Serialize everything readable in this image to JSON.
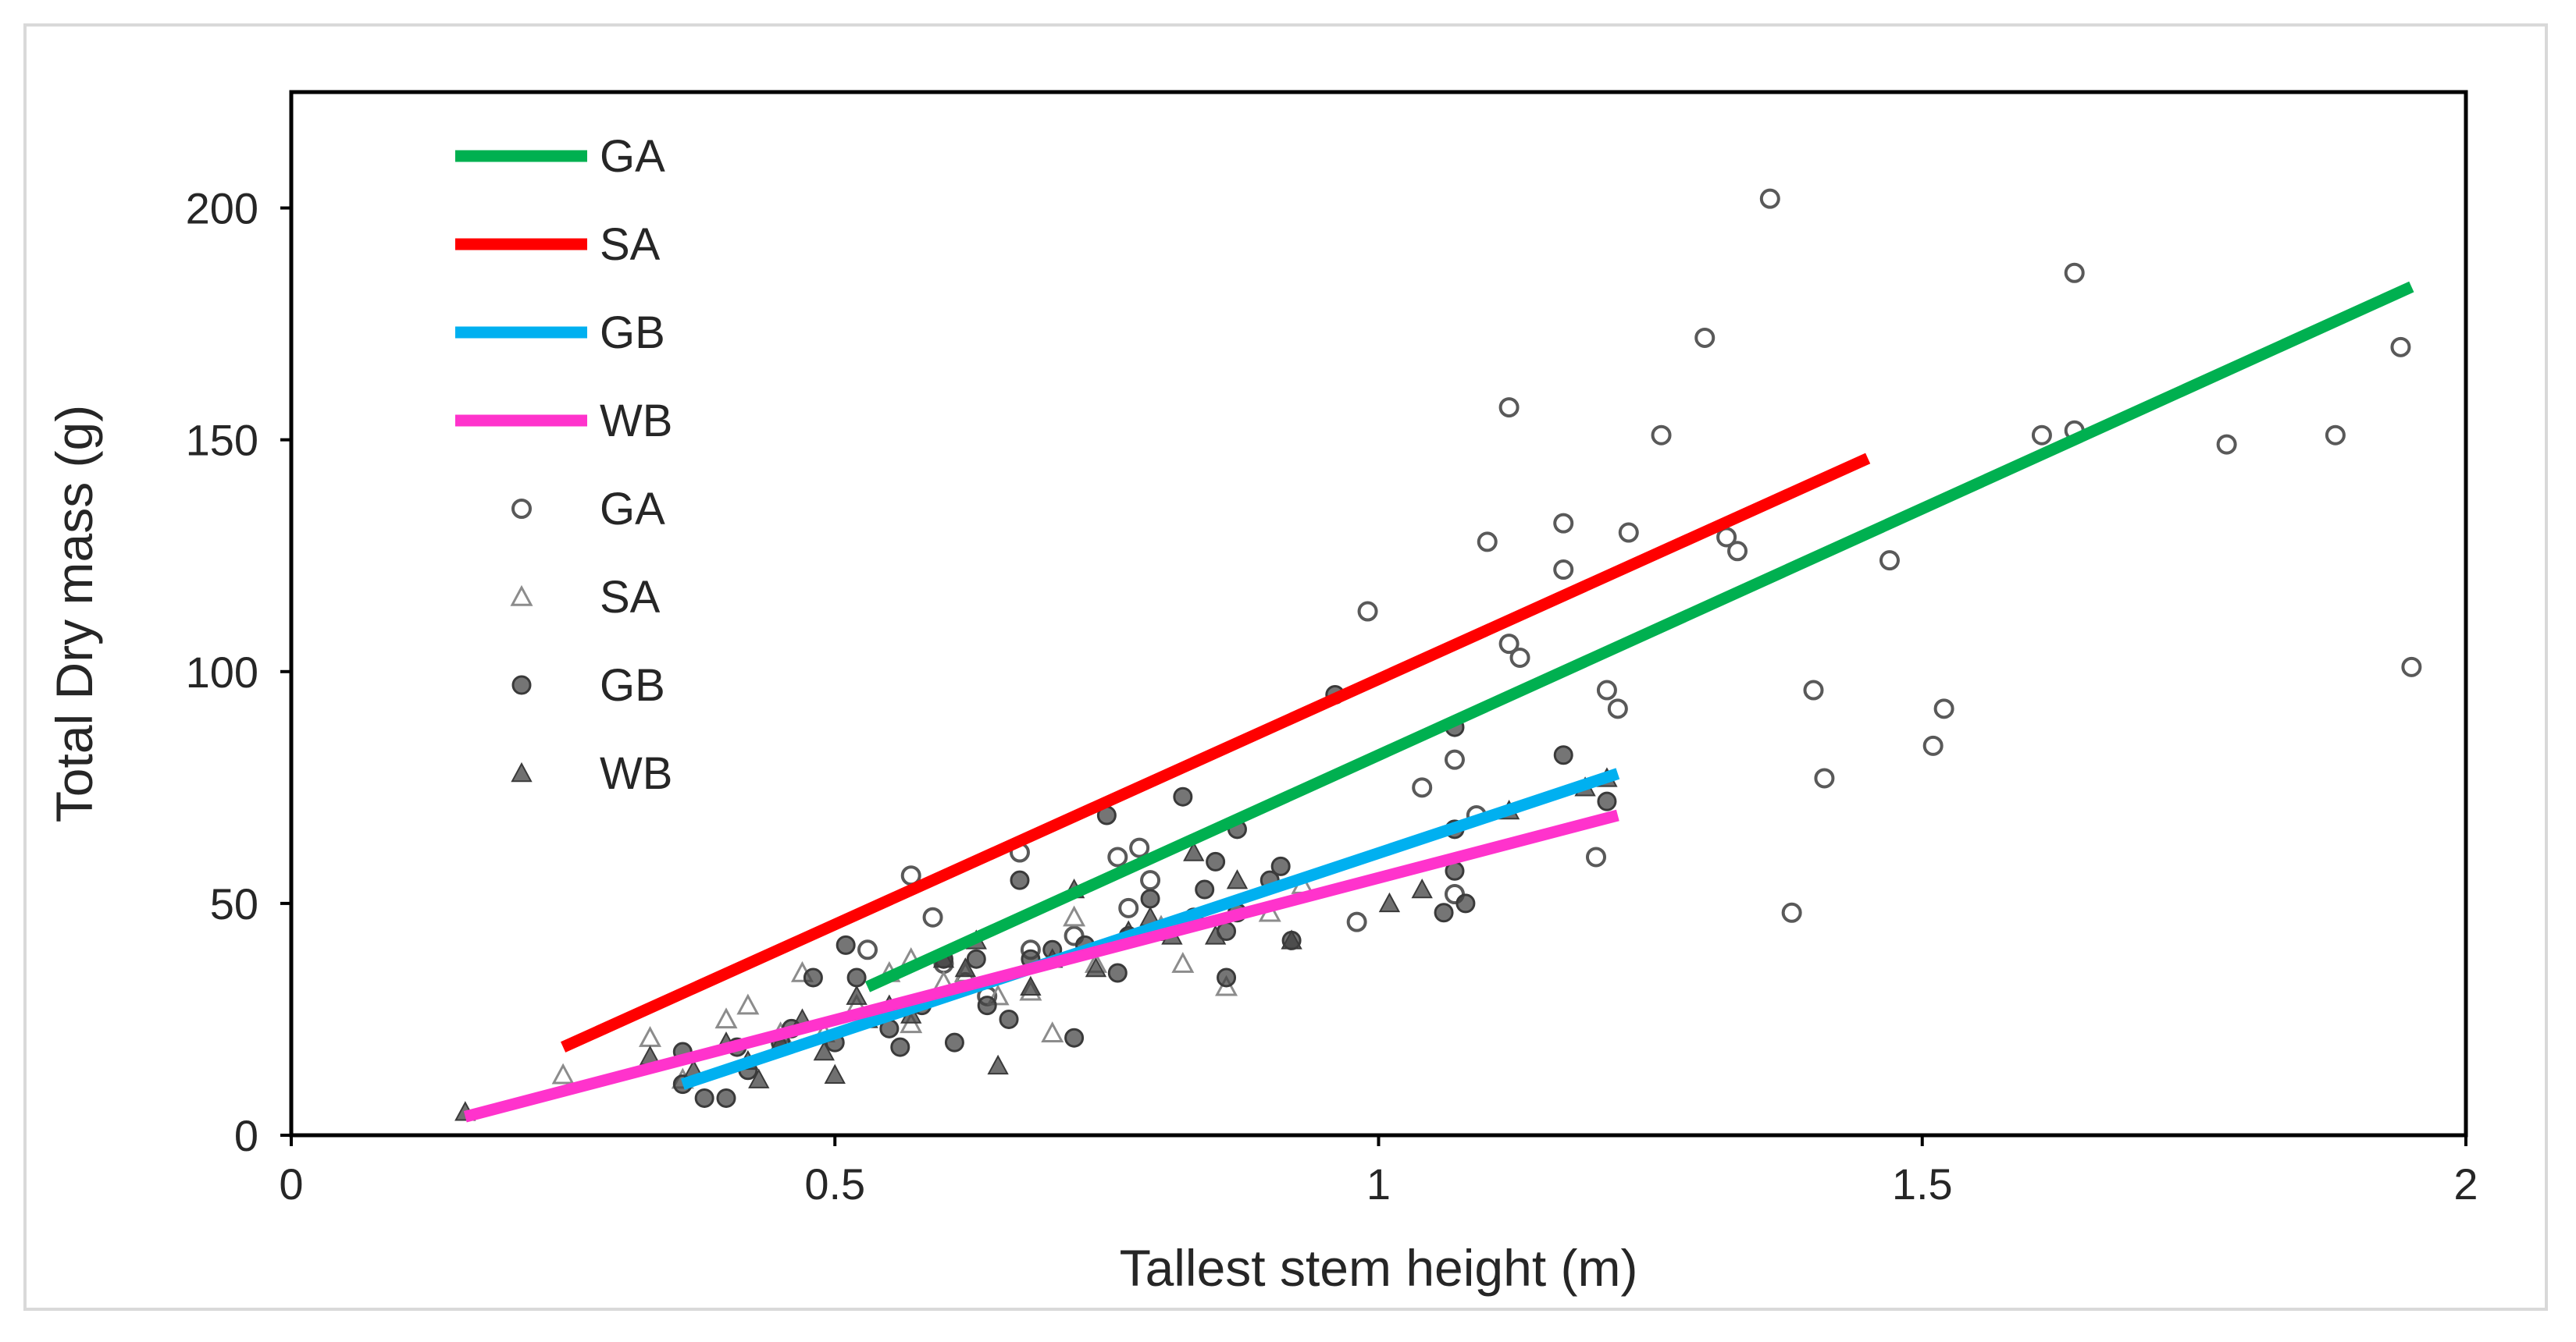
{
  "chart_data": {
    "type": "scatter",
    "xlabel": "Tallest stem height (m)",
    "ylabel": "Total Dry mass (g)",
    "xlim": [
      0,
      2
    ],
    "ylim": [
      0,
      225
    ],
    "xticks": [
      0,
      0.5,
      1,
      1.5,
      2
    ],
    "xtick_labels": [
      "0",
      "0.5",
      "1",
      "1.5",
      "2"
    ],
    "yticks": [
      0,
      50,
      100,
      150,
      200
    ],
    "ytick_labels": [
      "0",
      "50",
      "100",
      "150",
      "200"
    ],
    "legend_position": "top-left",
    "lines": [
      {
        "name": "GA",
        "color": "#00b050",
        "x": [
          0.53,
          1.95
        ],
        "y": [
          32,
          183
        ]
      },
      {
        "name": "SA",
        "color": "#ff0000",
        "x": [
          0.25,
          1.45
        ],
        "y": [
          19,
          146
        ]
      },
      {
        "name": "GB",
        "color": "#00b0f0",
        "x": [
          0.36,
          1.22
        ],
        "y": [
          11,
          78
        ]
      },
      {
        "name": "WB",
        "color": "#ff33cc",
        "x": [
          0.16,
          1.22
        ],
        "y": [
          4,
          69
        ]
      }
    ],
    "series": [
      {
        "name": "GA",
        "marker": "open-circle",
        "points": [
          [
            1.36,
            202
          ],
          [
            1.64,
            186
          ],
          [
            1.3,
            172
          ],
          [
            1.94,
            170
          ],
          [
            1.12,
            157
          ],
          [
            1.26,
            151
          ],
          [
            1.61,
            151
          ],
          [
            1.64,
            152
          ],
          [
            1.78,
            149
          ],
          [
            1.88,
            151
          ],
          [
            1.17,
            132
          ],
          [
            1.1,
            128
          ],
          [
            1.23,
            130
          ],
          [
            1.32,
            129
          ],
          [
            1.33,
            126
          ],
          [
            1.17,
            122
          ],
          [
            1.47,
            124
          ],
          [
            0.99,
            113
          ],
          [
            1.12,
            106
          ],
          [
            1.13,
            103
          ],
          [
            1.95,
            101
          ],
          [
            1.21,
            96
          ],
          [
            1.22,
            92
          ],
          [
            1.4,
            96
          ],
          [
            1.52,
            92
          ],
          [
            1.51,
            84
          ],
          [
            1.41,
            77
          ],
          [
            1.07,
            81
          ],
          [
            1.04,
            75
          ],
          [
            1.09,
            69
          ],
          [
            1.2,
            60
          ],
          [
            1.07,
            52
          ],
          [
            0.98,
            46
          ],
          [
            1.38,
            48
          ],
          [
            0.57,
            56
          ],
          [
            0.59,
            47
          ],
          [
            0.67,
            61
          ],
          [
            0.78,
            62
          ],
          [
            0.76,
            60
          ],
          [
            0.79,
            55
          ],
          [
            0.77,
            49
          ],
          [
            0.53,
            40
          ],
          [
            0.6,
            37
          ],
          [
            0.62,
            33
          ],
          [
            0.64,
            30
          ],
          [
            0.68,
            40
          ],
          [
            0.72,
            43
          ]
        ]
      },
      {
        "name": "SA",
        "marker": "open-triangle",
        "points": [
          [
            0.25,
            13
          ],
          [
            0.33,
            21
          ],
          [
            0.36,
            12
          ],
          [
            0.4,
            25
          ],
          [
            0.42,
            28
          ],
          [
            0.45,
            22
          ],
          [
            0.47,
            35
          ],
          [
            0.49,
            22
          ],
          [
            0.52,
            28
          ],
          [
            0.55,
            35
          ],
          [
            0.57,
            38
          ],
          [
            0.6,
            33
          ],
          [
            0.62,
            35
          ],
          [
            0.65,
            30
          ],
          [
            0.68,
            31
          ],
          [
            0.7,
            22
          ],
          [
            0.74,
            37
          ],
          [
            0.8,
            45
          ],
          [
            0.82,
            37
          ],
          [
            0.86,
            32
          ],
          [
            0.9,
            48
          ],
          [
            0.93,
            54
          ],
          [
            0.72,
            47
          ],
          [
            0.57,
            24
          ]
        ]
      },
      {
        "name": "GB",
        "marker": "filled-circle",
        "points": [
          [
            0.36,
            18
          ],
          [
            0.36,
            11
          ],
          [
            0.38,
            8
          ],
          [
            0.4,
            8
          ],
          [
            0.41,
            19
          ],
          [
            0.42,
            14
          ],
          [
            0.45,
            20
          ],
          [
            0.46,
            23
          ],
          [
            0.48,
            34
          ],
          [
            0.5,
            20
          ],
          [
            0.51,
            41
          ],
          [
            0.52,
            34
          ],
          [
            0.55,
            23
          ],
          [
            0.56,
            19
          ],
          [
            0.58,
            28
          ],
          [
            0.6,
            38
          ],
          [
            0.61,
            20
          ],
          [
            0.63,
            38
          ],
          [
            0.64,
            28
          ],
          [
            0.66,
            25
          ],
          [
            0.67,
            55
          ],
          [
            0.68,
            38
          ],
          [
            0.7,
            40
          ],
          [
            0.72,
            21
          ],
          [
            0.73,
            41
          ],
          [
            0.75,
            69
          ],
          [
            0.76,
            35
          ],
          [
            0.77,
            43
          ],
          [
            0.79,
            51
          ],
          [
            0.8,
            44
          ],
          [
            0.82,
            73
          ],
          [
            0.83,
            47
          ],
          [
            0.84,
            53
          ],
          [
            0.85,
            59
          ],
          [
            0.86,
            34
          ],
          [
            0.86,
            44
          ],
          [
            0.87,
            48
          ],
          [
            0.87,
            66
          ],
          [
            0.9,
            55
          ],
          [
            0.91,
            58
          ],
          [
            0.92,
            42
          ],
          [
            0.96,
            95
          ],
          [
            1.06,
            48
          ],
          [
            1.07,
            57
          ],
          [
            1.07,
            88
          ],
          [
            1.07,
            66
          ],
          [
            1.08,
            50
          ],
          [
            1.17,
            82
          ],
          [
            1.21,
            72
          ]
        ]
      },
      {
        "name": "WB",
        "marker": "filled-triangle",
        "points": [
          [
            0.16,
            5
          ],
          [
            0.33,
            17
          ],
          [
            0.37,
            14
          ],
          [
            0.4,
            20
          ],
          [
            0.42,
            16
          ],
          [
            0.43,
            12
          ],
          [
            0.45,
            20
          ],
          [
            0.47,
            25
          ],
          [
            0.49,
            18
          ],
          [
            0.5,
            13
          ],
          [
            0.52,
            30
          ],
          [
            0.53,
            25
          ],
          [
            0.55,
            28
          ],
          [
            0.57,
            26
          ],
          [
            0.6,
            38
          ],
          [
            0.62,
            36
          ],
          [
            0.63,
            42
          ],
          [
            0.65,
            15
          ],
          [
            0.68,
            32
          ],
          [
            0.7,
            38
          ],
          [
            0.72,
            53
          ],
          [
            0.74,
            36
          ],
          [
            0.77,
            44
          ],
          [
            0.79,
            47
          ],
          [
            0.81,
            43
          ],
          [
            0.83,
            61
          ],
          [
            0.85,
            43
          ],
          [
            0.87,
            55
          ],
          [
            0.92,
            42
          ],
          [
            1.01,
            50
          ],
          [
            1.04,
            53
          ],
          [
            1.12,
            70
          ],
          [
            1.19,
            75
          ],
          [
            1.21,
            77
          ]
        ]
      }
    ],
    "legend": [
      {
        "label": "GA",
        "kind": "line",
        "color": "#00b050"
      },
      {
        "label": "SA",
        "kind": "line",
        "color": "#ff0000"
      },
      {
        "label": "GB",
        "kind": "line",
        "color": "#00b0f0"
      },
      {
        "label": "WB",
        "kind": "line",
        "color": "#ff33cc"
      },
      {
        "label": "GA",
        "kind": "marker",
        "marker": "open-circle"
      },
      {
        "label": "SA",
        "kind": "marker",
        "marker": "open-triangle"
      },
      {
        "label": "GB",
        "kind": "marker",
        "marker": "filled-circle"
      },
      {
        "label": "WB",
        "kind": "marker",
        "marker": "filled-triangle"
      }
    ]
  }
}
